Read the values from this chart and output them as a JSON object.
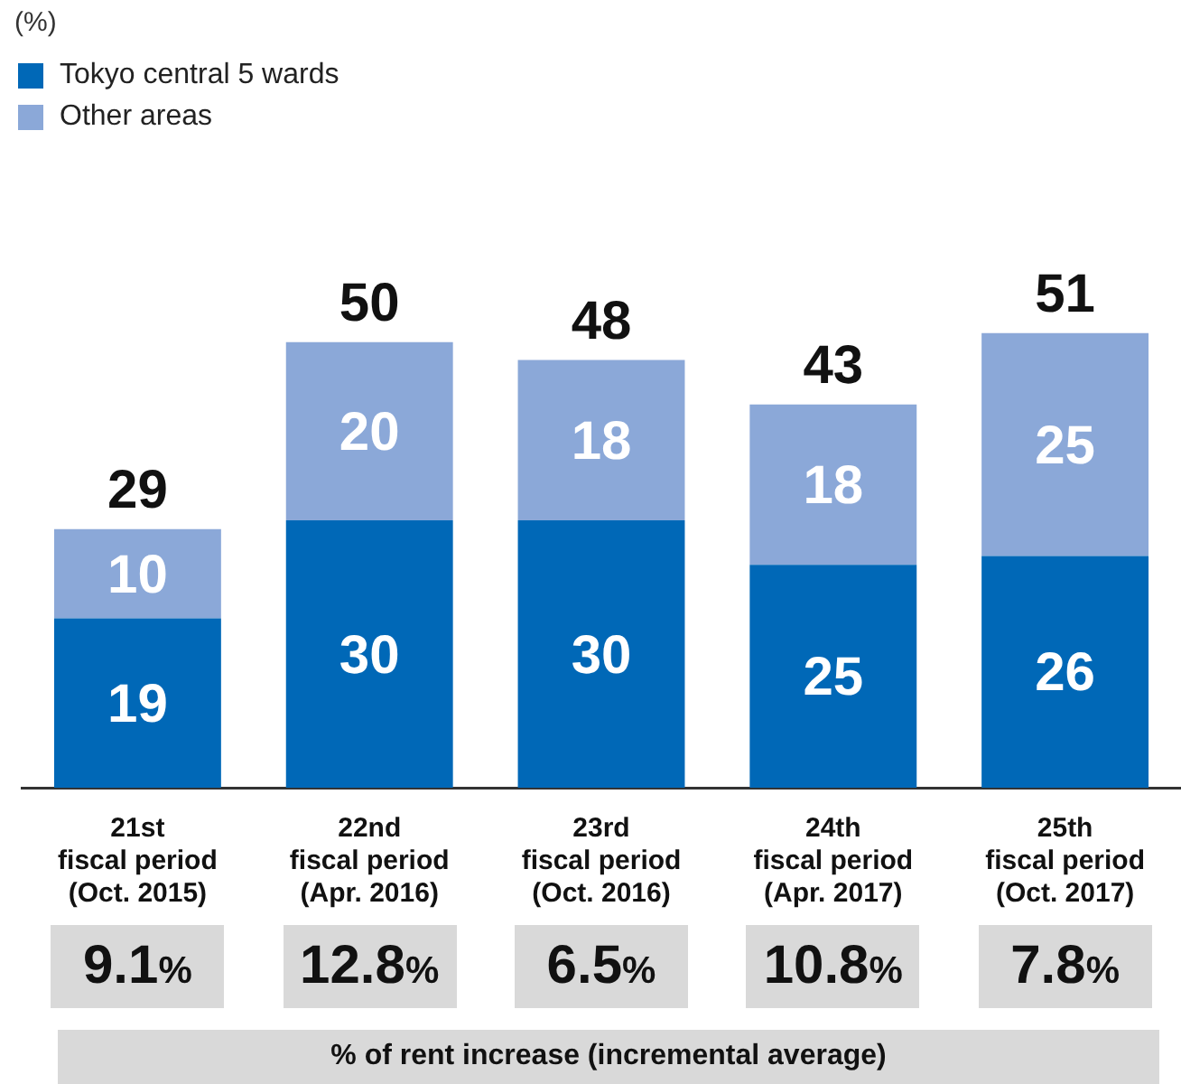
{
  "chart_data": {
    "type": "bar",
    "stacked": true,
    "legend": "top left",
    "data_labels": true,
    "categories": [
      "21st\nfiscal period\n(Oct. 2015)",
      "22nd\nfiscal period\n(Apr. 2016)",
      "23rd\nfiscal period\n(Oct. 2016)",
      "24th\nfiscal period\n(Apr. 2017)",
      "25th\nfiscal period\n(Oct. 2017)"
    ],
    "series": [
      {
        "name": "Tokyo central 5 wards",
        "color": "#0068b7",
        "values": [
          19,
          30,
          30,
          25,
          26
        ]
      },
      {
        "name": "Other areas",
        "color": "#8ba8d8",
        "values": [
          10,
          20,
          18,
          18,
          25
        ]
      }
    ],
    "totals": [
      "29",
      "50",
      "48",
      "43",
      "51"
    ],
    "annotations": [
      "(%)",
      "9.1%",
      "12.8%",
      "6.5%",
      "10.8%",
      "7.8%",
      "% of rent increase (incremental average)"
    ]
  }
}
